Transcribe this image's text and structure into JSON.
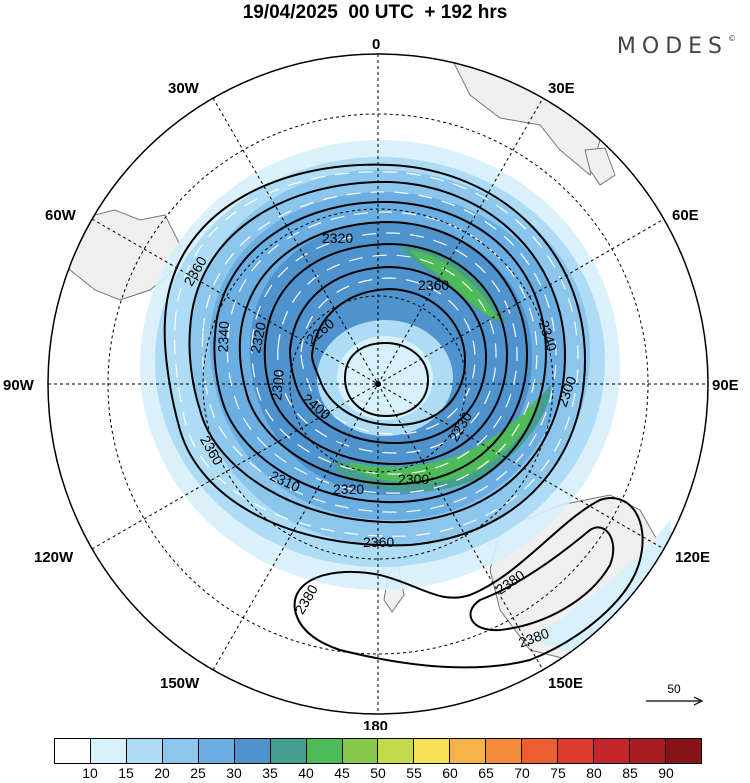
{
  "title": "19/04/2025  00 UTC  + 192 hrs",
  "brand": "MODES",
  "brand_mark": "©",
  "map": {
    "projection": "south-polar-stereographic",
    "longitude_labels": {
      "top": "0",
      "upper_left": "30W",
      "upper_right": "30E",
      "left_upper": "60W",
      "right_upper": "60E",
      "left": "90W",
      "right": "90E",
      "left_lower": "120W",
      "right_lower": "120E",
      "lower_left": "150W",
      "lower_right": "150E",
      "bottom": "180"
    },
    "contour_labels": {
      "c1": "2360",
      "c2": "2320",
      "c3": "2340",
      "c4": "2340",
      "c5": "2320",
      "c6": "2260",
      "c7": "2300",
      "c8": "2400",
      "c9": "2230",
      "c10": "2300",
      "c11": "2360",
      "c12": "2310",
      "c13": "2320",
      "c14": "2300",
      "c15": "2360",
      "c16": "2380",
      "c17": "2380",
      "c18": "2380",
      "c19": "2360"
    },
    "colors": {
      "land": "#efefef",
      "coast": "#777777",
      "ocean": "#ffffff",
      "vector": "#ffffff"
    }
  },
  "reference_vector": {
    "label": "50"
  },
  "colorbar": {
    "ticks": [
      "10",
      "15",
      "20",
      "25",
      "30",
      "35",
      "40",
      "45",
      "50",
      "55",
      "60",
      "65",
      "70",
      "75",
      "80",
      "85",
      "90"
    ],
    "colors": [
      "#ffffff",
      "#d6f0fc",
      "#aedcf5",
      "#8cc6ec",
      "#6aaee2",
      "#4f93ce",
      "#469e8e",
      "#4fba5a",
      "#86c94c",
      "#c3da4c",
      "#f7e157",
      "#f7b24a",
      "#f38b3a",
      "#ec5e30",
      "#dd3a30",
      "#c5262b",
      "#a81c22",
      "#861519"
    ]
  }
}
